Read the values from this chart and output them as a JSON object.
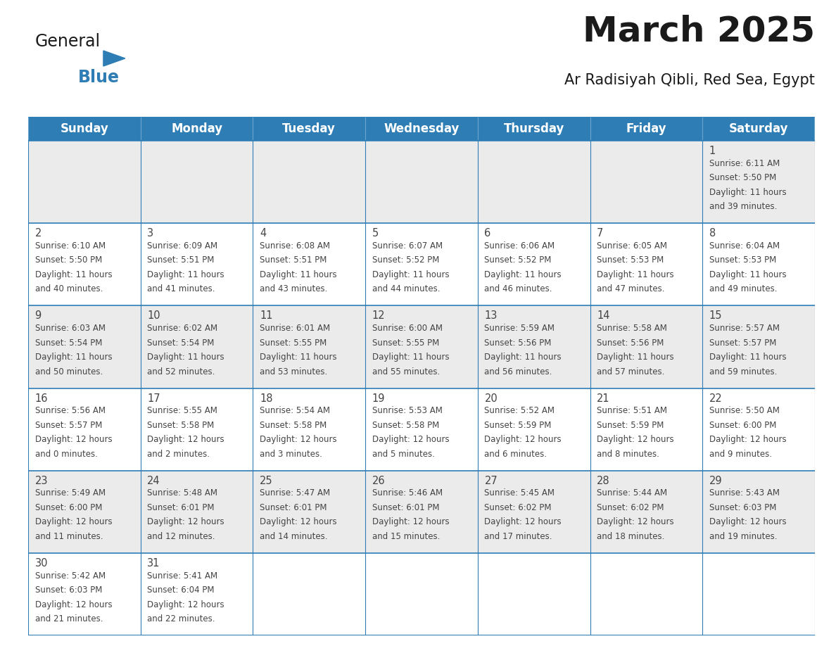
{
  "title": "March 2025",
  "subtitle": "Ar Radisiyah Qibli, Red Sea, Egypt",
  "days_of_week": [
    "Sunday",
    "Monday",
    "Tuesday",
    "Wednesday",
    "Thursday",
    "Friday",
    "Saturday"
  ],
  "header_bg": "#2E7DB5",
  "header_text": "#FFFFFF",
  "cell_bg_odd": "#EBEBEB",
  "cell_bg_even": "#FFFFFF",
  "border_color": "#2E7DB5",
  "text_color": "#444444",
  "title_color": "#1a1a1a",
  "calendar_data": [
    [
      null,
      null,
      null,
      null,
      null,
      null,
      {
        "day": 1,
        "sunrise": "6:11 AM",
        "sunset": "5:50 PM",
        "daylight": "11 hours and 39 minutes."
      }
    ],
    [
      {
        "day": 2,
        "sunrise": "6:10 AM",
        "sunset": "5:50 PM",
        "daylight": "11 hours and 40 minutes."
      },
      {
        "day": 3,
        "sunrise": "6:09 AM",
        "sunset": "5:51 PM",
        "daylight": "11 hours and 41 minutes."
      },
      {
        "day": 4,
        "sunrise": "6:08 AM",
        "sunset": "5:51 PM",
        "daylight": "11 hours and 43 minutes."
      },
      {
        "day": 5,
        "sunrise": "6:07 AM",
        "sunset": "5:52 PM",
        "daylight": "11 hours and 44 minutes."
      },
      {
        "day": 6,
        "sunrise": "6:06 AM",
        "sunset": "5:52 PM",
        "daylight": "11 hours and 46 minutes."
      },
      {
        "day": 7,
        "sunrise": "6:05 AM",
        "sunset": "5:53 PM",
        "daylight": "11 hours and 47 minutes."
      },
      {
        "day": 8,
        "sunrise": "6:04 AM",
        "sunset": "5:53 PM",
        "daylight": "11 hours and 49 minutes."
      }
    ],
    [
      {
        "day": 9,
        "sunrise": "6:03 AM",
        "sunset": "5:54 PM",
        "daylight": "11 hours and 50 minutes."
      },
      {
        "day": 10,
        "sunrise": "6:02 AM",
        "sunset": "5:54 PM",
        "daylight": "11 hours and 52 minutes."
      },
      {
        "day": 11,
        "sunrise": "6:01 AM",
        "sunset": "5:55 PM",
        "daylight": "11 hours and 53 minutes."
      },
      {
        "day": 12,
        "sunrise": "6:00 AM",
        "sunset": "5:55 PM",
        "daylight": "11 hours and 55 minutes."
      },
      {
        "day": 13,
        "sunrise": "5:59 AM",
        "sunset": "5:56 PM",
        "daylight": "11 hours and 56 minutes."
      },
      {
        "day": 14,
        "sunrise": "5:58 AM",
        "sunset": "5:56 PM",
        "daylight": "11 hours and 57 minutes."
      },
      {
        "day": 15,
        "sunrise": "5:57 AM",
        "sunset": "5:57 PM",
        "daylight": "11 hours and 59 minutes."
      }
    ],
    [
      {
        "day": 16,
        "sunrise": "5:56 AM",
        "sunset": "5:57 PM",
        "daylight": "12 hours and 0 minutes."
      },
      {
        "day": 17,
        "sunrise": "5:55 AM",
        "sunset": "5:58 PM",
        "daylight": "12 hours and 2 minutes."
      },
      {
        "day": 18,
        "sunrise": "5:54 AM",
        "sunset": "5:58 PM",
        "daylight": "12 hours and 3 minutes."
      },
      {
        "day": 19,
        "sunrise": "5:53 AM",
        "sunset": "5:58 PM",
        "daylight": "12 hours and 5 minutes."
      },
      {
        "day": 20,
        "sunrise": "5:52 AM",
        "sunset": "5:59 PM",
        "daylight": "12 hours and 6 minutes."
      },
      {
        "day": 21,
        "sunrise": "5:51 AM",
        "sunset": "5:59 PM",
        "daylight": "12 hours and 8 minutes."
      },
      {
        "day": 22,
        "sunrise": "5:50 AM",
        "sunset": "6:00 PM",
        "daylight": "12 hours and 9 minutes."
      }
    ],
    [
      {
        "day": 23,
        "sunrise": "5:49 AM",
        "sunset": "6:00 PM",
        "daylight": "12 hours and 11 minutes."
      },
      {
        "day": 24,
        "sunrise": "5:48 AM",
        "sunset": "6:01 PM",
        "daylight": "12 hours and 12 minutes."
      },
      {
        "day": 25,
        "sunrise": "5:47 AM",
        "sunset": "6:01 PM",
        "daylight": "12 hours and 14 minutes."
      },
      {
        "day": 26,
        "sunrise": "5:46 AM",
        "sunset": "6:01 PM",
        "daylight": "12 hours and 15 minutes."
      },
      {
        "day": 27,
        "sunrise": "5:45 AM",
        "sunset": "6:02 PM",
        "daylight": "12 hours and 17 minutes."
      },
      {
        "day": 28,
        "sunrise": "5:44 AM",
        "sunset": "6:02 PM",
        "daylight": "12 hours and 18 minutes."
      },
      {
        "day": 29,
        "sunrise": "5:43 AM",
        "sunset": "6:03 PM",
        "daylight": "12 hours and 19 minutes."
      }
    ],
    [
      {
        "day": 30,
        "sunrise": "5:42 AM",
        "sunset": "6:03 PM",
        "daylight": "12 hours and 21 minutes."
      },
      {
        "day": 31,
        "sunrise": "5:41 AM",
        "sunset": "6:04 PM",
        "daylight": "12 hours and 22 minutes."
      },
      null,
      null,
      null,
      null,
      null
    ]
  ],
  "logo_general_color": "#1a1a1a",
  "logo_blue_color": "#2E7DB5",
  "logo_triangle_color": "#2E7DB5"
}
